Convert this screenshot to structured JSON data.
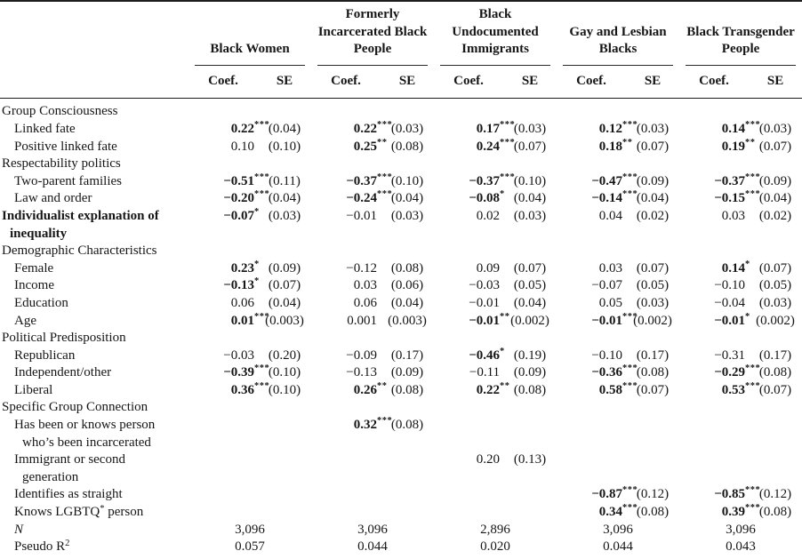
{
  "header": {
    "coef_label": "Coef.",
    "se_label": "SE",
    "groups": [
      {
        "name": "Black Women",
        "lines": [
          "Black Women"
        ]
      },
      {
        "name": "Formerly Incarcerated Black People",
        "lines": [
          "Formerly",
          "Incarcerated Black",
          "People"
        ]
      },
      {
        "name": "Black Undocumented Immigrants",
        "lines": [
          "Black",
          "Undocumented",
          "Immigrants"
        ]
      },
      {
        "name": "Gay and Lesbian Blacks",
        "lines": [
          "Gay and Lesbian",
          "Blacks"
        ]
      },
      {
        "name": "Black Transgender People",
        "lines": [
          "Black Transgender",
          "People"
        ]
      }
    ]
  },
  "rows": [
    {
      "lines": [
        "Group Consciousness"
      ],
      "indent": 0,
      "bold": false,
      "cells": null
    },
    {
      "lines": [
        "Linked fate"
      ],
      "indent": 1,
      "bold": false,
      "cells": [
        {
          "coef": "0.22",
          "stars": "***",
          "se": "(0.04)",
          "bold": true
        },
        {
          "coef": "0.22",
          "stars": "***",
          "se": "(0.03)",
          "bold": true
        },
        {
          "coef": "0.17",
          "stars": "***",
          "se": "(0.03)",
          "bold": true
        },
        {
          "coef": "0.12",
          "stars": "***",
          "se": "(0.03)",
          "bold": true
        },
        {
          "coef": "0.14",
          "stars": "***",
          "se": "(0.03)",
          "bold": true
        }
      ]
    },
    {
      "lines": [
        "Positive linked fate"
      ],
      "indent": 1,
      "bold": false,
      "cells": [
        {
          "coef": "0.10",
          "stars": "",
          "se": "(0.10)",
          "bold": false
        },
        {
          "coef": "0.25",
          "stars": "**",
          "se": "(0.08)",
          "bold": true
        },
        {
          "coef": "0.24",
          "stars": "***",
          "se": "(0.07)",
          "bold": true
        },
        {
          "coef": "0.18",
          "stars": "**",
          "se": "(0.07)",
          "bold": true
        },
        {
          "coef": "0.19",
          "stars": "**",
          "se": "(0.07)",
          "bold": true
        }
      ]
    },
    {
      "lines": [
        "Respectability politics"
      ],
      "indent": 0,
      "bold": false,
      "cells": null
    },
    {
      "lines": [
        "Two-parent families"
      ],
      "indent": 1,
      "bold": false,
      "cells": [
        {
          "coef": "−0.51",
          "stars": "***",
          "se": "(0.11)",
          "bold": true
        },
        {
          "coef": "−0.37",
          "stars": "***",
          "se": "(0.10)",
          "bold": true
        },
        {
          "coef": "−0.37",
          "stars": "***",
          "se": "(0.10)",
          "bold": true
        },
        {
          "coef": "−0.47",
          "stars": "***",
          "se": "(0.09)",
          "bold": true
        },
        {
          "coef": "−0.37",
          "stars": "***",
          "se": "(0.09)",
          "bold": true
        }
      ]
    },
    {
      "lines": [
        "Law and order"
      ],
      "indent": 1,
      "bold": false,
      "cells": [
        {
          "coef": "−0.20",
          "stars": "***",
          "se": "(0.04)",
          "bold": true
        },
        {
          "coef": "−0.24",
          "stars": "***",
          "se": "(0.04)",
          "bold": true
        },
        {
          "coef": "−0.08",
          "stars": "*",
          "se": "(0.04)",
          "bold": true
        },
        {
          "coef": "−0.14",
          "stars": "***",
          "se": "(0.04)",
          "bold": true
        },
        {
          "coef": "−0.15",
          "stars": "***",
          "se": "(0.04)",
          "bold": true
        }
      ]
    },
    {
      "lines": [
        "Individualist explanation of",
        "inequality"
      ],
      "indent": 0,
      "bold": true,
      "cells": [
        {
          "coef": "−0.07",
          "stars": "*",
          "se": "(0.03)",
          "bold": true
        },
        {
          "coef": "−0.01",
          "stars": "",
          "se": "(0.03)",
          "bold": false
        },
        {
          "coef": "0.02",
          "stars": "",
          "se": "(0.03)",
          "bold": false
        },
        {
          "coef": "0.04",
          "stars": "",
          "se": "(0.02)",
          "bold": false
        },
        {
          "coef": "0.03",
          "stars": "",
          "se": "(0.02)",
          "bold": false
        }
      ]
    },
    {
      "lines": [
        "Demographic Characteristics"
      ],
      "indent": 0,
      "bold": false,
      "cells": null
    },
    {
      "lines": [
        "Female"
      ],
      "indent": 1,
      "bold": false,
      "cells": [
        {
          "coef": "0.23",
          "stars": "*",
          "se": "(0.09)",
          "bold": true
        },
        {
          "coef": "−0.12",
          "stars": "",
          "se": "(0.08)",
          "bold": false
        },
        {
          "coef": "0.09",
          "stars": "",
          "se": "(0.07)",
          "bold": false
        },
        {
          "coef": "0.03",
          "stars": "",
          "se": "(0.07)",
          "bold": false
        },
        {
          "coef": "0.14",
          "stars": "*",
          "se": "(0.07)",
          "bold": true
        }
      ]
    },
    {
      "lines": [
        "Income"
      ],
      "indent": 1,
      "bold": false,
      "cells": [
        {
          "coef": "−0.13",
          "stars": "*",
          "se": "(0.07)",
          "bold": true
        },
        {
          "coef": "0.03",
          "stars": "",
          "se": "(0.06)",
          "bold": false
        },
        {
          "coef": "−0.03",
          "stars": "",
          "se": "(0.05)",
          "bold": false
        },
        {
          "coef": "−0.07",
          "stars": "",
          "se": "(0.05)",
          "bold": false
        },
        {
          "coef": "−0.10",
          "stars": "",
          "se": "(0.05)",
          "bold": false
        }
      ]
    },
    {
      "lines": [
        "Education"
      ],
      "indent": 1,
      "bold": false,
      "cells": [
        {
          "coef": "0.06",
          "stars": "",
          "se": "(0.04)",
          "bold": false
        },
        {
          "coef": "0.06",
          "stars": "",
          "se": "(0.04)",
          "bold": false
        },
        {
          "coef": "−0.01",
          "stars": "",
          "se": "(0.04)",
          "bold": false
        },
        {
          "coef": "0.05",
          "stars": "",
          "se": "(0.03)",
          "bold": false
        },
        {
          "coef": "−0.04",
          "stars": "",
          "se": "(0.03)",
          "bold": false
        }
      ]
    },
    {
      "lines": [
        "Age"
      ],
      "indent": 1,
      "bold": false,
      "cells": [
        {
          "coef": "0.01",
          "stars": "***",
          "se": "(0.003)",
          "bold": true
        },
        {
          "coef": "0.001",
          "stars": "",
          "se": "(0.003)",
          "bold": false
        },
        {
          "coef": "−0.01",
          "stars": "**",
          "se": "(0.002)",
          "bold": true
        },
        {
          "coef": "−0.01",
          "stars": "***",
          "se": "(0.002)",
          "bold": true
        },
        {
          "coef": "−0.01",
          "stars": "*",
          "se": "(0.002)",
          "bold": true
        }
      ]
    },
    {
      "lines": [
        "Political Predisposition"
      ],
      "indent": 0,
      "bold": false,
      "cells": null
    },
    {
      "lines": [
        "Republican"
      ],
      "indent": 1,
      "bold": false,
      "cells": [
        {
          "coef": "−0.03",
          "stars": "",
          "se": "(0.20)",
          "bold": false
        },
        {
          "coef": "−0.09",
          "stars": "",
          "se": "(0.17)",
          "bold": false
        },
        {
          "coef": "−0.46",
          "stars": "*",
          "se": "(0.19)",
          "bold": true
        },
        {
          "coef": "−0.10",
          "stars": "",
          "se": "(0.17)",
          "bold": false
        },
        {
          "coef": "−0.31",
          "stars": "",
          "se": "(0.17)",
          "bold": false
        }
      ]
    },
    {
      "lines": [
        "Independent/other"
      ],
      "indent": 1,
      "bold": false,
      "cells": [
        {
          "coef": "−0.39",
          "stars": "***",
          "se": "(0.10)",
          "bold": true
        },
        {
          "coef": "−0.13",
          "stars": "",
          "se": "(0.09)",
          "bold": false
        },
        {
          "coef": "−0.11",
          "stars": "",
          "se": "(0.09)",
          "bold": false
        },
        {
          "coef": "−0.36",
          "stars": "***",
          "se": "(0.08)",
          "bold": true
        },
        {
          "coef": "−0.29",
          "stars": "***",
          "se": "(0.08)",
          "bold": true
        }
      ]
    },
    {
      "lines": [
        "Liberal"
      ],
      "indent": 1,
      "bold": false,
      "cells": [
        {
          "coef": "0.36",
          "stars": "***",
          "se": "(0.10)",
          "bold": true
        },
        {
          "coef": "0.26",
          "stars": "**",
          "se": "(0.08)",
          "bold": true
        },
        {
          "coef": "0.22",
          "stars": "**",
          "se": "(0.08)",
          "bold": true
        },
        {
          "coef": "0.58",
          "stars": "***",
          "se": "(0.07)",
          "bold": true
        },
        {
          "coef": "0.53",
          "stars": "***",
          "se": "(0.07)",
          "bold": true
        }
      ]
    },
    {
      "lines": [
        "Specific Group Connection"
      ],
      "indent": 0,
      "bold": false,
      "cells": null
    },
    {
      "lines": [
        "Has been or knows person",
        "who’s been incarcerated"
      ],
      "indent": 1,
      "bold": false,
      "cells": [
        null,
        {
          "coef": "0.32",
          "stars": "***",
          "se": "(0.08)",
          "bold": true
        },
        null,
        null,
        null
      ]
    },
    {
      "lines": [
        "Immigrant or second",
        "generation"
      ],
      "indent": 1,
      "bold": false,
      "cells": [
        null,
        null,
        {
          "coef": "0.20",
          "stars": "",
          "se": "(0.13)",
          "bold": false
        },
        null,
        null
      ]
    },
    {
      "lines": [
        "Identifies as straight"
      ],
      "indent": 1,
      "bold": false,
      "cells": [
        null,
        null,
        null,
        {
          "coef": "−0.87",
          "stars": "***",
          "se": "(0.12)",
          "bold": true
        },
        {
          "coef": "−0.85",
          "stars": "***",
          "se": "(0.12)",
          "bold": true
        }
      ]
    },
    {
      "lines": [
        "Knows LGBTQ^{*} person"
      ],
      "indent": 1,
      "bold": false,
      "cells": [
        null,
        null,
        null,
        {
          "coef": "0.34",
          "stars": "***",
          "se": "(0.08)",
          "bold": true
        },
        {
          "coef": "0.39",
          "stars": "***",
          "se": "(0.08)",
          "bold": true
        }
      ]
    }
  ],
  "footer_rows": [
    {
      "label": "~{N}",
      "values": [
        "3,096",
        "3,096",
        "2,896",
        "3,096",
        "3,096"
      ]
    },
    {
      "label": "Pseudo R^{2}",
      "values": [
        "0.057",
        "0.044",
        "0.020",
        "0.044",
        "0.043"
      ]
    }
  ]
}
